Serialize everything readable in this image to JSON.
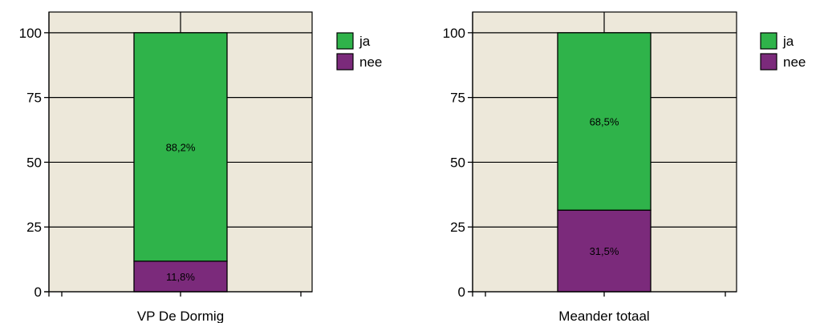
{
  "chart_data": [
    {
      "type": "bar",
      "stacked": true,
      "categories": [
        "VP De Dormig"
      ],
      "series": [
        {
          "name": "nee",
          "values": [
            11.8
          ],
          "label": "11,8%",
          "color": "#7b2a7b"
        },
        {
          "name": "ja",
          "values": [
            88.2
          ],
          "label": "88,2%",
          "color": "#2fb34a"
        }
      ],
      "yticks": [
        "0",
        "25",
        "50",
        "75",
        "100"
      ],
      "ylim": [
        0,
        108
      ],
      "grid": true,
      "legend": "right",
      "plot_background": "#ede8da"
    },
    {
      "type": "bar",
      "stacked": true,
      "categories": [
        "Meander totaal"
      ],
      "series": [
        {
          "name": "nee",
          "values": [
            31.5
          ],
          "label": "31,5%",
          "color": "#7b2a7b"
        },
        {
          "name": "ja",
          "values": [
            68.5
          ],
          "label": "68,5%",
          "color": "#2fb34a"
        }
      ],
      "yticks": [
        "0",
        "25",
        "50",
        "75",
        "100"
      ],
      "ylim": [
        0,
        108
      ],
      "grid": true,
      "legend": "right",
      "plot_background": "#ede8da"
    }
  ]
}
